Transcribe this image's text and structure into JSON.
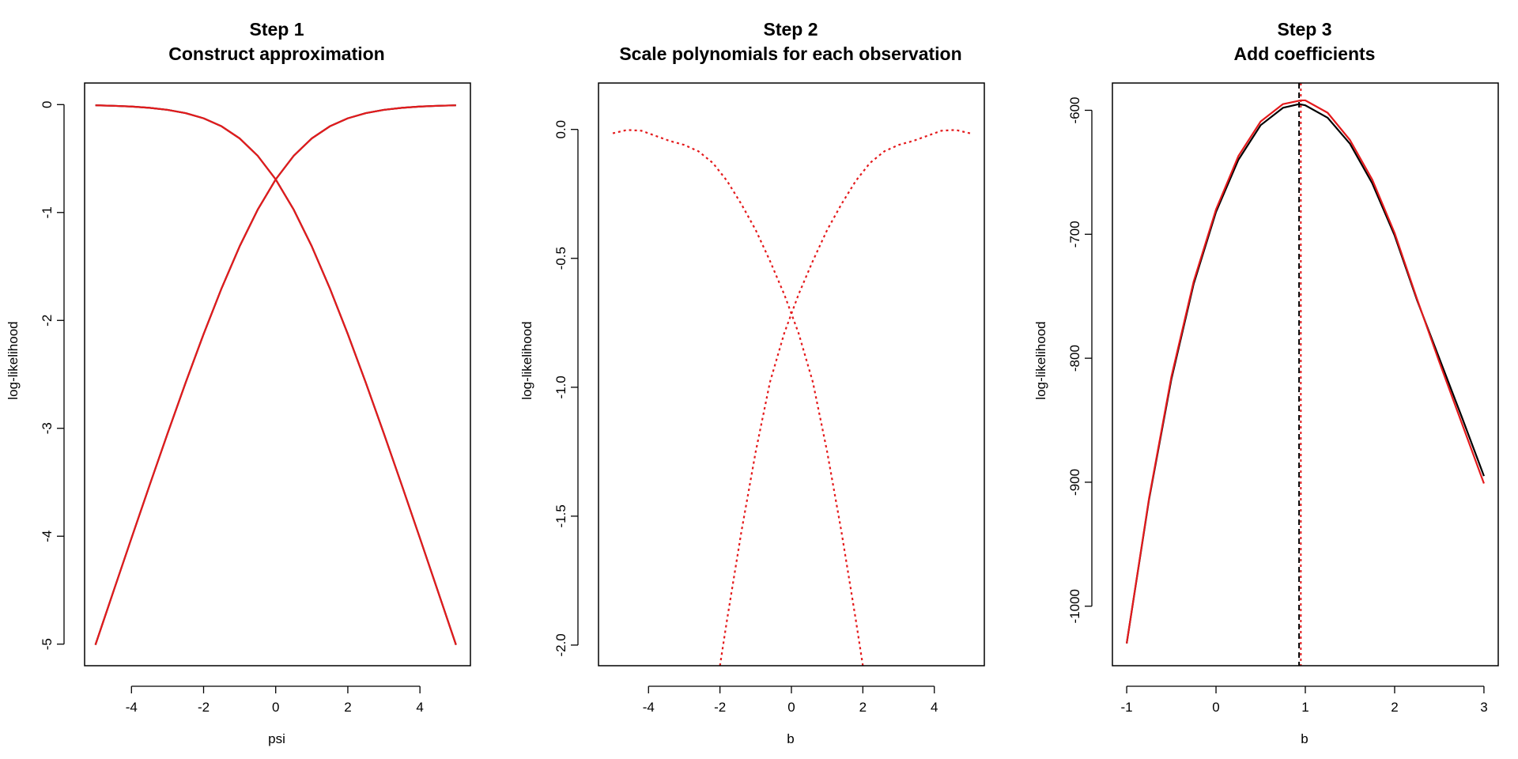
{
  "chart_data": [
    {
      "type": "line",
      "title": [
        "Step 1",
        "Construct approximation"
      ],
      "xlabel": "psi",
      "ylabel": "log-likelihood",
      "xlim": [
        -5.3,
        5.4
      ],
      "ylim": [
        -5.2,
        0.2
      ],
      "xticks": [
        -4,
        -2,
        0,
        2,
        4
      ],
      "xtick_labels": [
        "-4",
        "-2",
        "0",
        "2",
        "4"
      ],
      "yticks": [
        0,
        -1,
        -2,
        -3,
        -4,
        -5
      ],
      "ytick_labels": [
        "0",
        "-1",
        "-2",
        "-3",
        "-4",
        "-5"
      ],
      "grid": false,
      "series": [
        {
          "color": "#000000",
          "dash": "solid",
          "x": [
            -5,
            -4.5,
            -4,
            -3.5,
            -3,
            -2.5,
            -2,
            -1.5,
            -1,
            -0.5,
            0,
            0.5,
            1,
            1.5,
            2,
            2.5,
            3,
            3.5,
            4,
            4.5,
            5
          ],
          "y": [
            -0.0067,
            -0.011,
            -0.0181,
            -0.0298,
            -0.0486,
            -0.0789,
            -0.1269,
            -0.2014,
            -0.3133,
            -0.4741,
            -0.6931,
            -0.9741,
            -1.3133,
            -1.7014,
            -2.1269,
            -2.5789,
            -3.0486,
            -3.5298,
            -4.0181,
            -4.511,
            -5.0067
          ]
        },
        {
          "color": "#000000",
          "dash": "solid",
          "x": [
            -5,
            -4.5,
            -4,
            -3.5,
            -3,
            -2.5,
            -2,
            -1.5,
            -1,
            -0.5,
            0,
            0.5,
            1,
            1.5,
            2,
            2.5,
            3,
            3.5,
            4,
            4.5,
            5
          ],
          "y": [
            -5.0067,
            -4.511,
            -4.0181,
            -3.5298,
            -3.0486,
            -2.5789,
            -2.1269,
            -1.7014,
            -1.3133,
            -0.9741,
            -0.6931,
            -0.4741,
            -0.3133,
            -0.2014,
            -0.1269,
            -0.0789,
            -0.0486,
            -0.0298,
            -0.0181,
            -0.011,
            -0.0067
          ]
        },
        {
          "color": "#e41a1c",
          "dash": "solid",
          "x": [
            -5,
            -4.5,
            -4,
            -3.5,
            -3,
            -2.5,
            -2,
            -1.5,
            -1,
            -0.5,
            0,
            0.5,
            1,
            1.5,
            2,
            2.5,
            3,
            3.5,
            4,
            4.5,
            5
          ],
          "y": [
            -0.0067,
            -0.011,
            -0.0181,
            -0.0298,
            -0.0486,
            -0.0789,
            -0.1269,
            -0.2014,
            -0.3133,
            -0.4741,
            -0.6931,
            -0.9741,
            -1.3133,
            -1.7014,
            -2.1269,
            -2.5789,
            -3.0486,
            -3.5298,
            -4.0181,
            -4.511,
            -5.0067
          ]
        },
        {
          "color": "#e41a1c",
          "dash": "solid",
          "x": [
            -5,
            -4.5,
            -4,
            -3.5,
            -3,
            -2.5,
            -2,
            -1.5,
            -1,
            -0.5,
            0,
            0.5,
            1,
            1.5,
            2,
            2.5,
            3,
            3.5,
            4,
            4.5,
            5
          ],
          "y": [
            -5.0067,
            -4.511,
            -4.0181,
            -3.5298,
            -3.0486,
            -2.5789,
            -2.1269,
            -1.7014,
            -1.3133,
            -0.9741,
            -0.6931,
            -0.4741,
            -0.3133,
            -0.2014,
            -0.1269,
            -0.0789,
            -0.0486,
            -0.0298,
            -0.0181,
            -0.011,
            -0.0067
          ]
        }
      ]
    },
    {
      "type": "line",
      "title": [
        "Step 2",
        "Scale polynomials for each observation"
      ],
      "xlabel": "b",
      "ylabel": "log-likelihood",
      "xlim": [
        -5.4,
        5.4
      ],
      "ylim": [
        -2.08,
        0.18
      ],
      "xticks": [
        -4,
        -2,
        0,
        2,
        4
      ],
      "xtick_labels": [
        "-4",
        "-2",
        "0",
        "2",
        "4"
      ],
      "yticks": [
        0,
        -0.5,
        -1,
        -1.5,
        -2
      ],
      "ytick_labels": [
        "0.0",
        "-0.5",
        "-1.0",
        "-1.5",
        "-2.0"
      ],
      "grid": false,
      "series": [
        {
          "color": "#e41a1c",
          "dash": "dotted",
          "x": [
            -5,
            -4.6,
            -4.2,
            -3.8,
            -3.4,
            -3,
            -2.6,
            -2.2,
            -1.8,
            -1.4,
            -1,
            -0.6,
            -0.2,
            0.2,
            0.6,
            1,
            1.4,
            1.8,
            2
          ],
          "y": [
            -0.015,
            -0.002,
            -0.005,
            -0.025,
            -0.045,
            -0.06,
            -0.085,
            -0.13,
            -0.2,
            -0.29,
            -0.39,
            -0.51,
            -0.64,
            -0.79,
            -0.98,
            -1.25,
            -1.56,
            -1.9,
            -2.08
          ]
        },
        {
          "color": "#e41a1c",
          "dash": "dotted",
          "x": [
            -2,
            -1.8,
            -1.4,
            -1,
            -0.6,
            -0.2,
            0.2,
            0.6,
            1,
            1.4,
            1.8,
            2.2,
            2.6,
            3,
            3.4,
            3.8,
            4.2,
            4.6,
            5
          ],
          "y": [
            -2.08,
            -1.9,
            -1.56,
            -1.25,
            -0.98,
            -0.79,
            -0.64,
            -0.51,
            -0.39,
            -0.29,
            -0.2,
            -0.13,
            -0.085,
            -0.06,
            -0.045,
            -0.025,
            -0.005,
            -0.002,
            -0.015
          ]
        }
      ]
    },
    {
      "type": "line",
      "title": [
        "Step 3",
        "Add coefficients"
      ],
      "xlabel": "b",
      "ylabel": "log-likelihood",
      "xlim": [
        -1.16,
        3.16
      ],
      "ylim": [
        -1048,
        -578
      ],
      "xticks": [
        -1,
        0,
        1,
        2,
        3
      ],
      "xtick_labels": [
        "-1",
        "0",
        "1",
        "2",
        "3"
      ],
      "yticks": [
        -600,
        -700,
        -800,
        -900,
        -1000
      ],
      "ytick_labels": [
        "-600",
        "-700",
        "-800",
        "-900",
        "-1000"
      ],
      "grid": false,
      "series": [
        {
          "color": "#000000",
          "dash": "solid",
          "x": [
            -1,
            -0.75,
            -0.5,
            -0.25,
            0,
            0.25,
            0.5,
            0.75,
            0.93,
            1,
            1.25,
            1.5,
            1.75,
            2,
            2.25,
            2.5,
            2.75,
            3
          ],
          "y": [
            -1030,
            -914,
            -817,
            -740,
            -682,
            -640,
            -612,
            -598,
            -595,
            -596,
            -606,
            -627,
            -659,
            -701,
            -753,
            -800,
            -847,
            -895
          ]
        },
        {
          "color": "#e41a1c",
          "dash": "solid",
          "x": [
            -1,
            -0.75,
            -0.5,
            -0.25,
            0,
            0.25,
            0.5,
            0.75,
            0.95,
            1,
            1.25,
            1.5,
            1.75,
            2,
            2.25,
            2.5,
            2.75,
            3
          ],
          "y": [
            -1030,
            -913,
            -815,
            -738,
            -680,
            -637,
            -609,
            -595,
            -592,
            -592,
            -602,
            -624,
            -656,
            -699,
            -752,
            -803,
            -852,
            -901
          ]
        }
      ],
      "vlines": [
        {
          "x": 0.93,
          "color": "#000000",
          "dash": "dashed"
        },
        {
          "x": 0.95,
          "color": "#e41a1c",
          "dash": "dotted"
        }
      ]
    }
  ]
}
